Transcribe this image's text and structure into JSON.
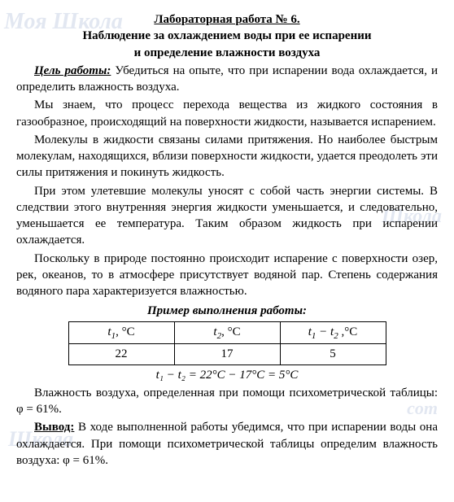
{
  "watermarks": {
    "wm1": "Моя Школа",
    "wm2": "Школа",
    "wm3": "Школа",
    "wm4": "com"
  },
  "title": "Лабораторная работа № 6.",
  "subtitle1": "Наблюдение за охлаждением воды при ее испарении",
  "subtitle2": "и определение влажности воздуха",
  "goal_label": "Цель работы:",
  "goal_text": " Убедиться на опыте, что при испарении вода охлаждается, и определить влажность воздуха.",
  "p1": "Мы знаем, что процесс перехода вещества из жидкого состояния в газообразное, происходящий на поверхности жидкости, называется испарением.",
  "p2": "Молекулы в жидкости связаны силами притяжения. Но наиболее быстрым молекулам, находящихся, вблизи поверхности жидкости, удается преодолеть эти силы притяжения и покинуть жидкость.",
  "p3": "При этом улетевшие молекулы уносят с собой часть энергии системы. В следствии этого внутренняя энергия жидкости уменьшается, и следовательно, уменьшается ее температура. Таким образом жидкость при испарении охлаждается.",
  "p4": "Поскольку в природе постоянно происходит испарение с поверхности озер, рек, океанов, то в атмосфере присутствует водяной пар. Степень содержания водяного пара характеризуется влажностью.",
  "example_header": "Пример выполнения работы:",
  "table": {
    "headers": {
      "h1_pre": "t",
      "h1_sub": "1",
      "h1_post": ", °С",
      "h2_pre": "t",
      "h2_sub": "2",
      "h2_post": ", °С",
      "h3_pre": "t",
      "h3_sub1": "1",
      "h3_mid": " − t",
      "h3_sub2": "2",
      "h3_post": " ,°С"
    },
    "values": {
      "v1": "22",
      "v2": "17",
      "v3": "5"
    }
  },
  "calc": "t₁ − t₂ = 22°С − 17°С = 5°С",
  "p5": "Влажность воздуха, определенная при помощи психометрической таблицы: φ = 61%.",
  "conclusion_label": "Вывод:",
  "conclusion_text": " В ходе выполненной работы убедимся, что при испарении воды она охлаждается. При помощи психометрической таблицы определим влажность воздуха: φ = 61%."
}
